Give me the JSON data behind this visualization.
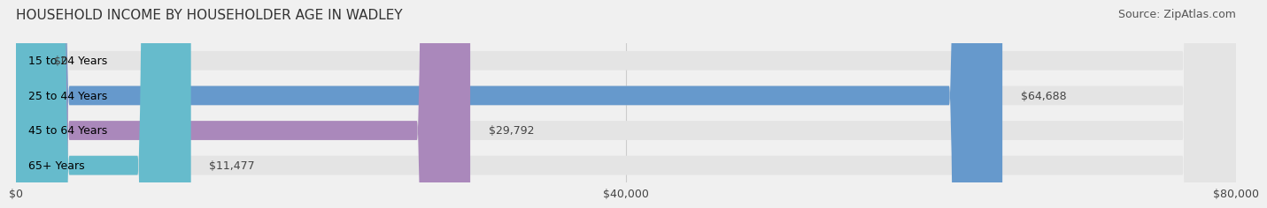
{
  "title": "HOUSEHOLD INCOME BY HOUSEHOLDER AGE IN WADLEY",
  "source": "Source: ZipAtlas.com",
  "categories": [
    "15 to 24 Years",
    "25 to 44 Years",
    "45 to 64 Years",
    "65+ Years"
  ],
  "values": [
    0,
    64688,
    29792,
    11477
  ],
  "bar_colors": [
    "#f08080",
    "#6699cc",
    "#aa88bb",
    "#66bbcc"
  ],
  "bg_color": "#f0f0f0",
  "bar_bg_color": "#e4e4e4",
  "xlim": [
    0,
    80000
  ],
  "xticks": [
    0,
    40000,
    80000
  ],
  "xtick_labels": [
    "$0",
    "$40,000",
    "$80,000"
  ],
  "value_labels": [
    "$0",
    "$64,688",
    "$29,792",
    "$11,477"
  ],
  "title_fontsize": 11,
  "source_fontsize": 9,
  "label_fontsize": 9,
  "tick_fontsize": 9
}
